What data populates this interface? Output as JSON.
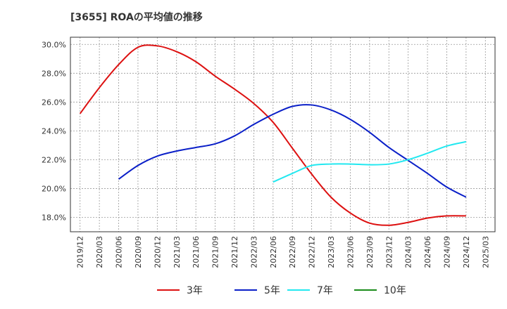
{
  "chart_data": {
    "type": "line",
    "title": "[3655]  ROAの平均値の推移",
    "xlabel": "",
    "ylabel": "",
    "x": [
      "2019/12",
      "2020/03",
      "2020/06",
      "2020/09",
      "2020/12",
      "2021/03",
      "2021/06",
      "2021/09",
      "2021/12",
      "2022/03",
      "2022/06",
      "2022/09",
      "2022/12",
      "2023/03",
      "2023/06",
      "2023/09",
      "2023/12",
      "2024/03",
      "2024/06",
      "2024/09",
      "2024/12",
      "2025/03"
    ],
    "ylim": [
      17.0,
      30.5
    ],
    "yticks": [
      18.0,
      20.0,
      22.0,
      24.0,
      26.0,
      28.0,
      30.0
    ],
    "ytick_labels": [
      "18.0%",
      "20.0%",
      "22.0%",
      "24.0%",
      "26.0%",
      "28.0%",
      "30.0%"
    ],
    "grid": true,
    "legend_position": "bottom",
    "series": [
      {
        "name": "3年",
        "color": "#dd1111",
        "values": [
          25.2,
          27.0,
          28.6,
          29.8,
          29.9,
          29.5,
          28.8,
          27.8,
          26.9,
          25.9,
          24.6,
          22.8,
          21.0,
          19.4,
          18.3,
          17.6,
          17.45,
          17.65,
          17.95,
          18.1,
          18.1,
          null
        ]
      },
      {
        "name": "5年",
        "color": "#0a1fc8",
        "values": [
          null,
          null,
          20.65,
          21.6,
          22.25,
          22.6,
          22.85,
          23.1,
          23.65,
          24.45,
          25.15,
          25.7,
          25.8,
          25.45,
          24.8,
          23.9,
          22.85,
          21.95,
          21.05,
          20.1,
          19.4,
          null
        ]
      },
      {
        "name": "7年",
        "color": "#22e8f0",
        "values": [
          null,
          null,
          null,
          null,
          null,
          null,
          null,
          null,
          null,
          null,
          20.45,
          21.05,
          21.6,
          21.7,
          21.7,
          21.65,
          21.7,
          22.0,
          22.45,
          22.95,
          23.25,
          null
        ]
      },
      {
        "name": "10年",
        "color": "#1a8c1a",
        "values": [
          null,
          null,
          null,
          null,
          null,
          null,
          null,
          null,
          null,
          null,
          null,
          null,
          null,
          null,
          null,
          null,
          null,
          null,
          null,
          null,
          null,
          null
        ]
      }
    ]
  }
}
